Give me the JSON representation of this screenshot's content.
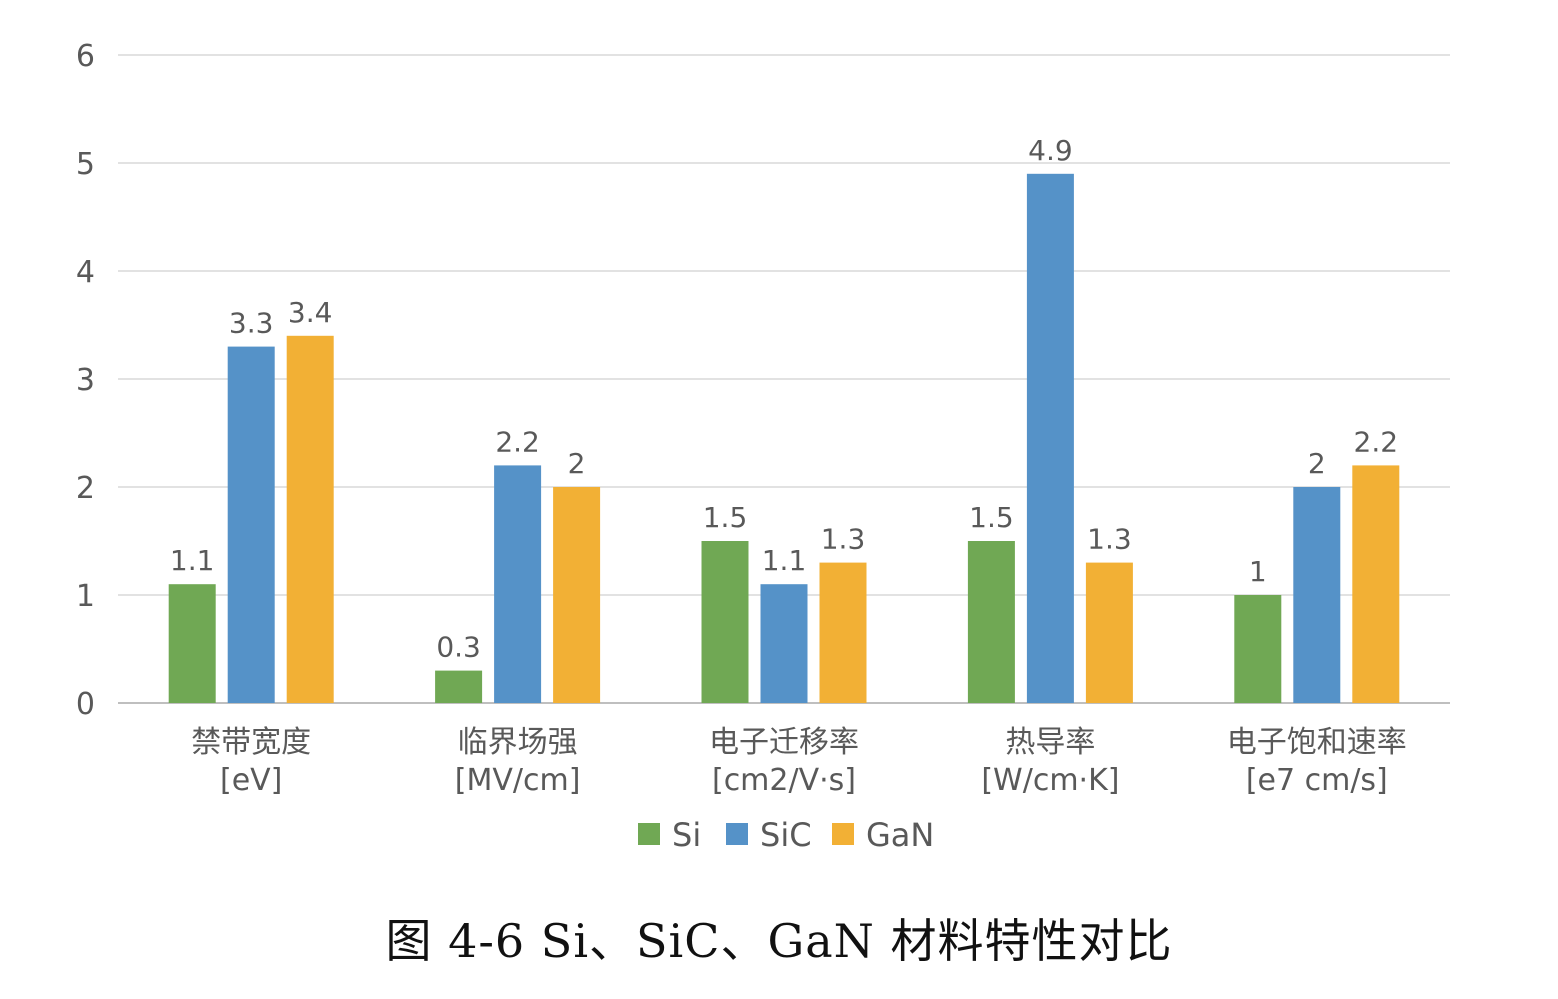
{
  "chart_data": {
    "type": "bar",
    "categories": [
      {
        "name": "禁带宽度",
        "unit": "[eV]"
      },
      {
        "name": "临界场强",
        "unit": "[MV/cm]"
      },
      {
        "name": "电子迁移率",
        "unit": "[cm2/V·s]"
      },
      {
        "name": "热导率",
        "unit": "[W/cm·K]"
      },
      {
        "name": "电子饱和速率",
        "unit": "[e7 cm/s]"
      }
    ],
    "series": [
      {
        "name": "Si",
        "color": "#70a854",
        "values": [
          1.1,
          0.3,
          1.5,
          1.5,
          1
        ],
        "labels": [
          "1.1",
          "0.3",
          "1.5",
          "1.5",
          "1"
        ]
      },
      {
        "name": "SiC",
        "color": "#5592c8",
        "values": [
          3.3,
          2.2,
          1.1,
          4.9,
          2
        ],
        "labels": [
          "3.3",
          "2.2",
          "1.1",
          "4.9",
          "2"
        ]
      },
      {
        "name": "GaN",
        "color": "#f2b035",
        "values": [
          3.4,
          2,
          1.3,
          1.3,
          2.2
        ],
        "labels": [
          "3.4",
          "2",
          "1.3",
          "1.3",
          "2.2"
        ]
      }
    ],
    "ylim": [
      0,
      6
    ],
    "yticks": [
      "0",
      "1",
      "2",
      "3",
      "4",
      "5",
      "6"
    ],
    "grid": true,
    "legend_position": "bottom"
  },
  "caption": "图 4-6  Si、SiC、GaN 材料特性对比"
}
